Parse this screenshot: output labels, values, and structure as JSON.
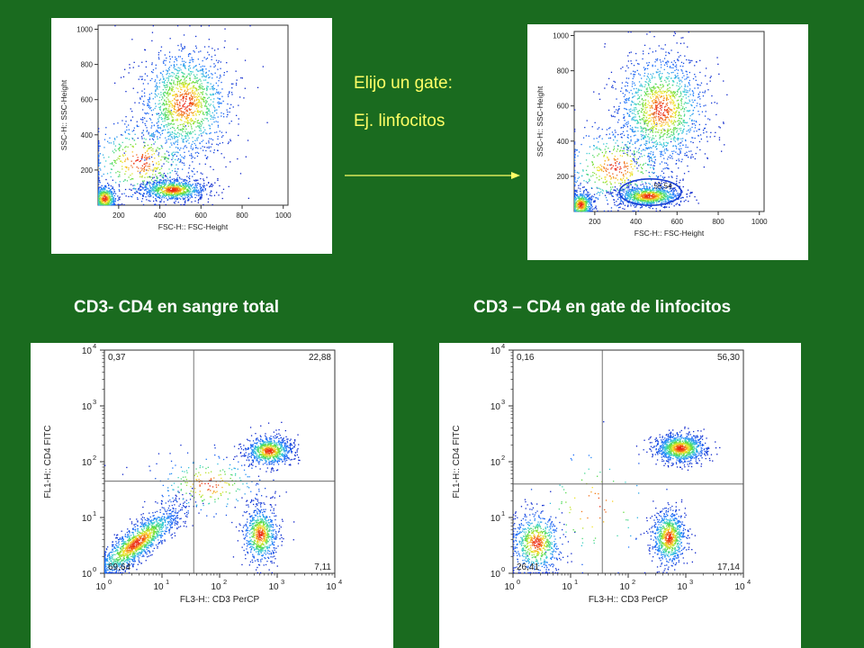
{
  "annotation": {
    "line1": "Elijo un gate:",
    "line2": "Ej. linfocitos",
    "text_color": "#ffff66",
    "arrow_color": "#ffff66"
  },
  "headings": {
    "left": "CD3- CD4 en sangre total",
    "right": "CD3 – CD4 en gate de linfocitos"
  },
  "background_color": "#1a6b1f",
  "chart_data": [
    {
      "type": "scatter",
      "id": "scatter-total",
      "xlabel": "FSC-H:: FSC-Height",
      "ylabel": "SSC-H:: SSC-Height",
      "xlim": [
        100,
        1023
      ],
      "ylim": [
        0,
        1023
      ],
      "xticks": [
        200,
        400,
        600,
        800,
        1000
      ],
      "yticks": [
        200,
        400,
        600,
        800,
        1000
      ],
      "populations": [
        {
          "cx": 130,
          "cy": 40,
          "sx": 30,
          "sy": 40,
          "n": 500
        },
        {
          "cx": 460,
          "cy": 90,
          "sx": 80,
          "sy": 30,
          "n": 900
        },
        {
          "cx": 520,
          "cy": 580,
          "sx": 110,
          "sy": 160,
          "n": 1400
        },
        {
          "cx": 300,
          "cy": 250,
          "sx": 140,
          "sy": 120,
          "n": 500
        }
      ]
    },
    {
      "type": "scatter",
      "id": "scatter-gated",
      "xlabel": "FSC-H:: FSC-Height",
      "ylabel": "SSC-H:: SSC-Height",
      "xlim": [
        100,
        1023
      ],
      "ylim": [
        0,
        1023
      ],
      "xticks": [
        200,
        400,
        600,
        800,
        1000
      ],
      "yticks": [
        200,
        400,
        600,
        800,
        1000
      ],
      "gate": {
        "cx": 470,
        "cy": 110,
        "rx": 150,
        "ry": 75,
        "label": "55,54",
        "color": "#1a3fd1"
      },
      "populations": [
        {
          "cx": 130,
          "cy": 40,
          "sx": 30,
          "sy": 40,
          "n": 500
        },
        {
          "cx": 460,
          "cy": 90,
          "sx": 80,
          "sy": 30,
          "n": 900
        },
        {
          "cx": 520,
          "cy": 580,
          "sx": 110,
          "sy": 160,
          "n": 1400
        },
        {
          "cx": 300,
          "cy": 250,
          "sx": 140,
          "sy": 120,
          "n": 500
        }
      ]
    },
    {
      "type": "scatter",
      "id": "quad-total",
      "xlabel": "FL3-H:: CD3 PerCP",
      "ylabel": "FL1-H:: CD4 FITC",
      "scale": "log",
      "xlim": [
        0,
        4
      ],
      "ylim": [
        0,
        4
      ],
      "decades": [
        "0",
        "1",
        "2",
        "3",
        "4"
      ],
      "quadrant_lines": {
        "x": 1.55,
        "y": 1.65
      },
      "quadrant_values": {
        "upper_left": "0,37",
        "upper_right": "22,88",
        "lower_left": "69,64",
        "lower_right": "7,11"
      },
      "populations": [
        {
          "cx": 0.55,
          "cy": 0.55,
          "sx": 0.38,
          "sy": 0.32,
          "n": 1500,
          "corr": 0.85
        },
        {
          "cx": 2.85,
          "cy": 2.2,
          "sx": 0.2,
          "sy": 0.13,
          "n": 800
        },
        {
          "cx": 2.7,
          "cy": 0.7,
          "sx": 0.15,
          "sy": 0.25,
          "n": 700
        },
        {
          "cx": 1.8,
          "cy": 1.6,
          "sx": 0.5,
          "sy": 0.3,
          "n": 250
        }
      ]
    },
    {
      "type": "scatter",
      "id": "quad-gated",
      "xlabel": "FL3-H:: CD3 PerCP",
      "ylabel": "FL1-H:: CD4 FITC",
      "scale": "log",
      "xlim": [
        0,
        4
      ],
      "ylim": [
        0,
        4
      ],
      "decades": [
        "0",
        "1",
        "2",
        "3",
        "4"
      ],
      "quadrant_lines": {
        "x": 1.55,
        "y": 1.6
      },
      "quadrant_values": {
        "upper_left": "0,16",
        "upper_right": "56,30",
        "lower_left": "26,41",
        "lower_right": "17,14"
      },
      "populations": [
        {
          "cx": 2.9,
          "cy": 2.25,
          "sx": 0.22,
          "sy": 0.13,
          "n": 1100
        },
        {
          "cx": 0.4,
          "cy": 0.55,
          "sx": 0.22,
          "sy": 0.28,
          "n": 700
        },
        {
          "cx": 2.7,
          "cy": 0.65,
          "sx": 0.15,
          "sy": 0.25,
          "n": 800
        },
        {
          "cx": 1.4,
          "cy": 1.2,
          "sx": 0.6,
          "sy": 0.6,
          "n": 80
        }
      ]
    }
  ]
}
